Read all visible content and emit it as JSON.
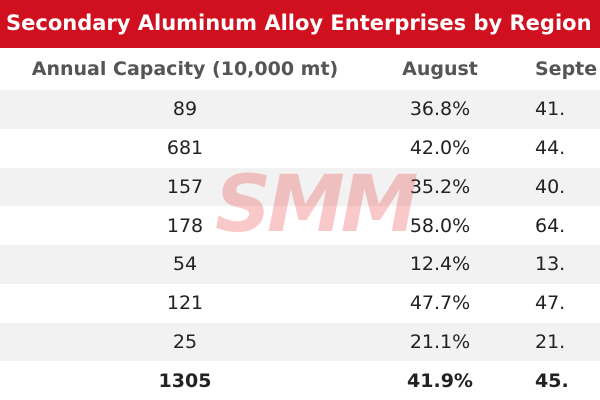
{
  "title": "Secondary Aluminum Alloy Enterprises by Region i",
  "watermark": "SMM",
  "table": {
    "header": [
      "Annual Capacity (10,000 mt)",
      "August",
      "Septe"
    ],
    "rows": [
      [
        "89",
        "36.8%",
        "41."
      ],
      [
        "681",
        "42.0%",
        "44."
      ],
      [
        "157",
        "35.2%",
        "40."
      ],
      [
        "178",
        "58.0%",
        "64."
      ],
      [
        "54",
        "12.4%",
        "13."
      ],
      [
        "121",
        "47.7%",
        "47."
      ],
      [
        "25",
        "21.1%",
        "21."
      ],
      [
        "1305",
        "41.9%",
        "45."
      ]
    ]
  }
}
